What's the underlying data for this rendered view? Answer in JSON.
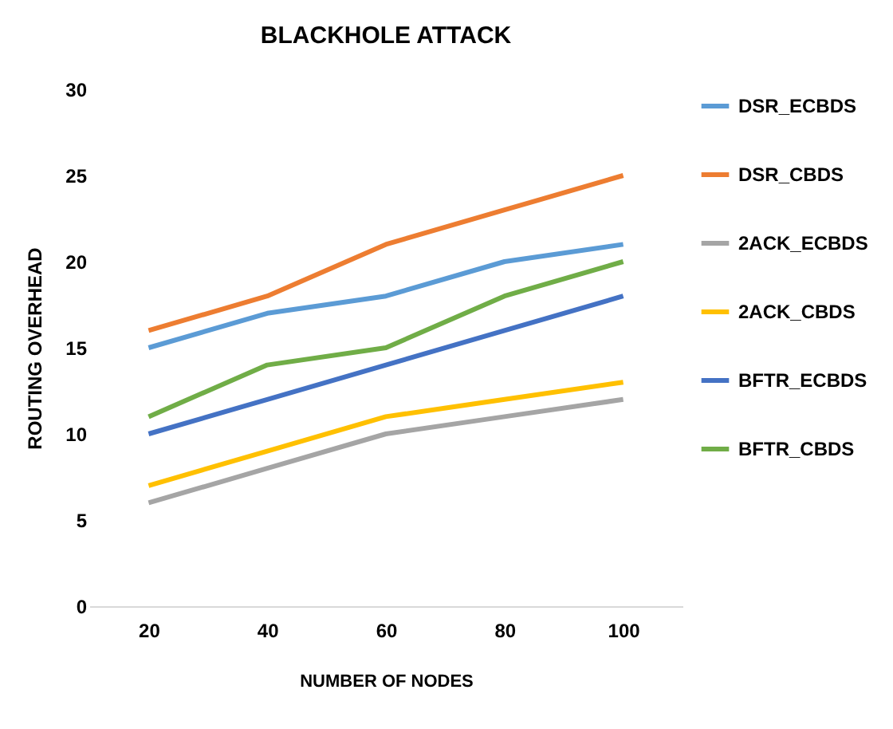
{
  "chart_data": {
    "type": "line",
    "title": "BLACKHOLE ATTACK",
    "xlabel": "NUMBER OF NODES",
    "ylabel": "ROUTING OVERHEAD",
    "categories": [
      "20",
      "40",
      "60",
      "80",
      "100"
    ],
    "series": [
      {
        "name": "DSR_ECBDS",
        "color": "#5b9bd5",
        "values": [
          15,
          17,
          18,
          20,
          21
        ]
      },
      {
        "name": "DSR_CBDS",
        "color": "#ed7d31",
        "values": [
          16,
          18,
          21,
          23,
          25
        ]
      },
      {
        "name": "2ACK_ECBDS",
        "color": "#a5a5a5",
        "values": [
          6,
          8,
          10,
          11,
          12
        ]
      },
      {
        "name": "2ACK_CBDS",
        "color": "#ffc000",
        "values": [
          7,
          9,
          11,
          12,
          13
        ]
      },
      {
        "name": "BFTR_ECBDS",
        "color": "#4472c4",
        "values": [
          10,
          12,
          14,
          16,
          18
        ]
      },
      {
        "name": "BFTR_CBDS",
        "color": "#70ad47",
        "values": [
          11,
          14,
          15,
          18,
          20
        ]
      }
    ],
    "ylim": [
      0,
      30
    ],
    "yticks": [
      0,
      5,
      10,
      15,
      20,
      25,
      30
    ],
    "grid": false,
    "legend": "right",
    "marker": "none",
    "line_style": "solid"
  }
}
